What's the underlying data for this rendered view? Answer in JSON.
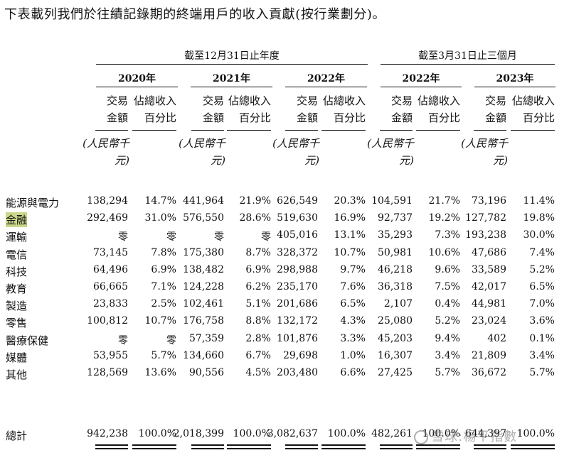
{
  "intro": "下表載列我們於往績記錄期的終端用戶的收入貢獻(按行業劃分)。",
  "periods": {
    "annual": "截至12月31日止年度",
    "quarter": "截至3月31日止三個月"
  },
  "years": [
    "2020年",
    "2021年",
    "2022年",
    "2022年",
    "2023年"
  ],
  "subheads": {
    "amount_l1": "交易",
    "amount_l2": "金額",
    "pct_l1": "佔總收入",
    "pct_l2": "百分比",
    "unit_l1": "(人民幣",
    "unit_l2": "千元)"
  },
  "rows": [
    {
      "label": "能源與電力",
      "v": [
        "138,294",
        "14.7%",
        "441,964",
        "21.9%",
        "626,549",
        "20.3%",
        "104,591",
        "21.7%",
        "73,196",
        "11.4%"
      ]
    },
    {
      "label": "金融",
      "v": [
        "292,469",
        "31.0%",
        "576,550",
        "28.6%",
        "519,630",
        "16.9%",
        "92,737",
        "19.2%",
        "127,782",
        "19.8%"
      ]
    },
    {
      "label": "運輸",
      "v": [
        "零",
        "零",
        "零",
        "零",
        "405,016",
        "13.1%",
        "35,293",
        "7.3%",
        "193,238",
        "30.0%"
      ]
    },
    {
      "label": "電信",
      "v": [
        "73,145",
        "7.8%",
        "175,380",
        "8.7%",
        "328,372",
        "10.7%",
        "50,981",
        "10.6%",
        "47,686",
        "7.4%"
      ]
    },
    {
      "label": "科技",
      "v": [
        "64,496",
        "6.9%",
        "138,482",
        "6.9%",
        "298,988",
        "9.7%",
        "46,218",
        "9.6%",
        "33,589",
        "5.2%"
      ]
    },
    {
      "label": "教育",
      "v": [
        "66,665",
        "7.1%",
        "124,228",
        "6.2%",
        "235,170",
        "7.6%",
        "36,318",
        "7.5%",
        "42,017",
        "6.5%"
      ]
    },
    {
      "label": "製造",
      "v": [
        "23,833",
        "2.5%",
        "102,461",
        "5.1%",
        "201,686",
        "6.5%",
        "2,107",
        "0.4%",
        "44,981",
        "7.0%"
      ]
    },
    {
      "label": "零售",
      "v": [
        "100,812",
        "10.7%",
        "176,758",
        "8.8%",
        "132,172",
        "4.3%",
        "25,080",
        "5.2%",
        "23,024",
        "3.6%"
      ]
    },
    {
      "label": "醫療保健",
      "v": [
        "零",
        "零",
        "57,359",
        "2.8%",
        "101,876",
        "3.3%",
        "45,203",
        "9.4%",
        "402",
        "0.1%"
      ]
    },
    {
      "label": "媒體",
      "v": [
        "53,955",
        "5.7%",
        "134,660",
        "6.7%",
        "29,698",
        "1.0%",
        "16,307",
        "3.4%",
        "21,809",
        "3.4%"
      ]
    },
    {
      "label": "其他",
      "v": [
        "128,569",
        "13.6%",
        "90,556",
        "4.5%",
        "203,480",
        "6.6%",
        "27,425",
        "5.7%",
        "36,672",
        "5.7%"
      ]
    }
  ],
  "total": {
    "label": "總計",
    "v": [
      "942,238",
      "100.0%",
      "2,018,399",
      "100.0%",
      "3,082,637",
      "100.0%",
      "482,261",
      "100.0%",
      "644,397",
      "100.0%"
    ]
  },
  "watermark": "雪球:楊平指數"
}
